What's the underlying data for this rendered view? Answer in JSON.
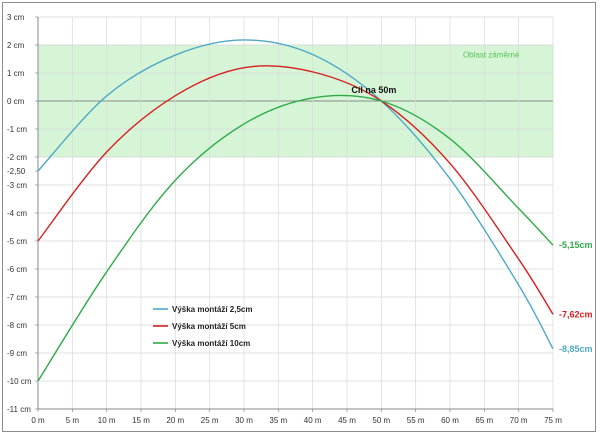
{
  "chart_data": {
    "type": "line",
    "title": "",
    "xlabel": "",
    "ylabel": "",
    "xlim": [
      0,
      75
    ],
    "ylim": [
      -11,
      3
    ],
    "x_ticks": [
      "0 m",
      "5 m",
      "10 m",
      "15 m",
      "20 m",
      "25 m",
      "30 m",
      "35 m",
      "40 m",
      "45 m",
      "50 m",
      "55 m",
      "60 m",
      "65 m",
      "70 m",
      "75 m"
    ],
    "y_ticks": [
      {
        "value": 3,
        "label": "3 cm"
      },
      {
        "value": 2,
        "label": "2 cm"
      },
      {
        "value": 1,
        "label": "1 cm"
      },
      {
        "value": 0,
        "label": "0 cm"
      },
      {
        "value": -1,
        "label": "-1 cm"
      },
      {
        "value": -2,
        "label": "-2 cm"
      },
      {
        "value": -3,
        "label": "-3 cm"
      },
      {
        "value": -4,
        "label": "-4 cm"
      },
      {
        "value": -5,
        "label": "-5 cm"
      },
      {
        "value": -6,
        "label": "-6 cm"
      },
      {
        "value": -7,
        "label": "-7 cm"
      },
      {
        "value": -8,
        "label": "-8 cm"
      },
      {
        "value": -9,
        "label": "-9 cm"
      },
      {
        "value": -10,
        "label": "-10 cm"
      },
      {
        "value": -11,
        "label": "-11 cm"
      }
    ],
    "extra_y_tick": {
      "value": -2.5,
      "label": "-2,50"
    },
    "grid": true,
    "zone": {
      "from": -2,
      "to": 2,
      "color": "#d6f5d6",
      "label": "Oblast záměrné"
    },
    "annotation": {
      "label": "Cíl na 50m",
      "x": 50,
      "y": 0
    },
    "legend_position": "lower-left",
    "series": [
      {
        "name": "Výška montáží 2,5cm",
        "color": "#4fa9c6",
        "end_label": "-8,85cm",
        "x": [
          0,
          10,
          20,
          30,
          40,
          50,
          60,
          70,
          75
        ],
        "y": [
          -2.5,
          0.18,
          1.64,
          2.18,
          1.66,
          0.0,
          -2.78,
          -6.57,
          -8.85
        ]
      },
      {
        "name": "Výška montáží 5cm",
        "color": "#d62020",
        "end_label": "-7,62cm",
        "x": [
          0,
          10,
          20,
          30,
          40,
          50,
          60,
          70,
          75
        ],
        "y": [
          -5.0,
          -1.82,
          0.19,
          1.19,
          1.04,
          0.0,
          -2.23,
          -5.65,
          -7.62
        ]
      },
      {
        "name": "Výška montáží 10cm",
        "color": "#2eab48",
        "end_label": "-5,15cm",
        "x": [
          0,
          10,
          20,
          30,
          40,
          50,
          60,
          70,
          75
        ],
        "y": [
          -10.0,
          -6.1,
          -2.83,
          -0.82,
          0.11,
          0.0,
          -1.35,
          -3.84,
          -5.15
        ]
      }
    ]
  }
}
